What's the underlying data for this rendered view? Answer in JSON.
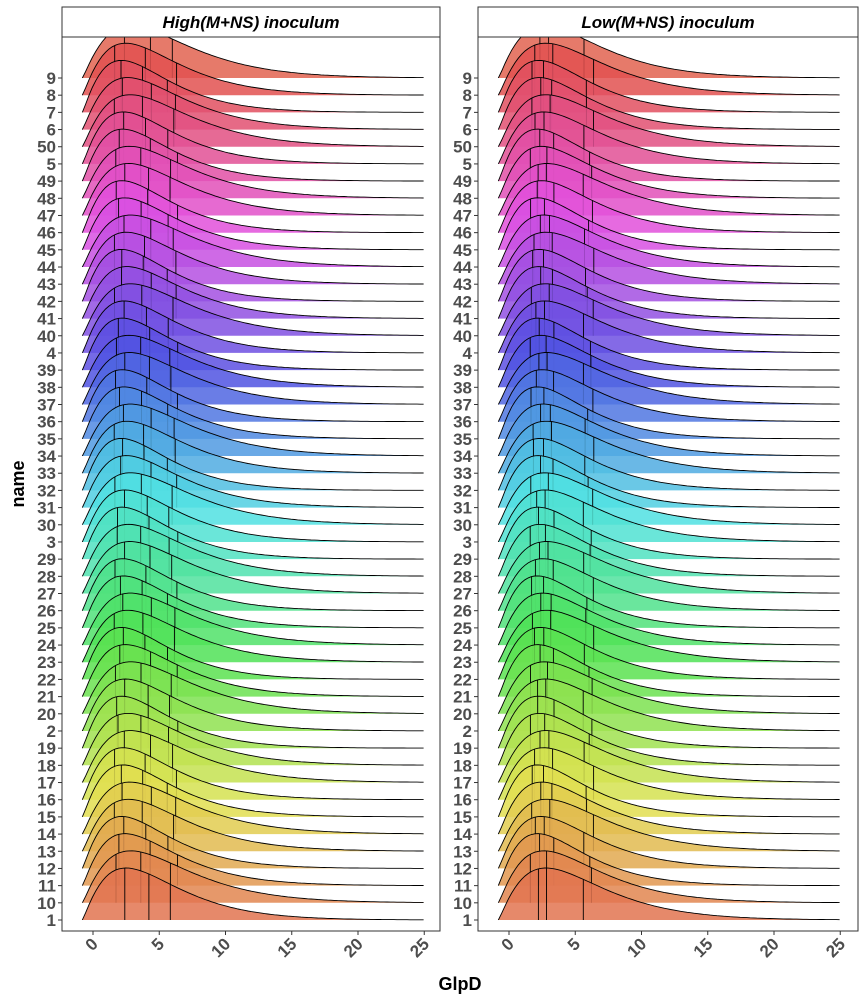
{
  "chart_data": {
    "type": "ridgeline",
    "xlabel": "GlpD",
    "ylabel": "name",
    "xlim": [
      -1,
      25
    ],
    "x_ticks": [
      0,
      5,
      10,
      15,
      20,
      25
    ],
    "y_categories": [
      "1",
      "10",
      "11",
      "12",
      "13",
      "14",
      "15",
      "16",
      "17",
      "18",
      "19",
      "2",
      "20",
      "21",
      "22",
      "23",
      "24",
      "25",
      "26",
      "27",
      "28",
      "29",
      "3",
      "30",
      "31",
      "32",
      "33",
      "34",
      "35",
      "36",
      "37",
      "38",
      "39",
      "4",
      "40",
      "41",
      "42",
      "43",
      "44",
      "45",
      "46",
      "47",
      "48",
      "49",
      "5",
      "50",
      "6",
      "7",
      "8",
      "9"
    ],
    "quantile_lines": true,
    "grid": false,
    "legend": "none",
    "panels": [
      {
        "title": "High(M+NS) inoculum",
        "mode": 2.5,
        "quantiles": [
          2,
          4,
          6
        ]
      },
      {
        "title": "Low(M+NS) inoculum",
        "mode": 2.5,
        "quantiles": [
          2,
          3,
          6
        ]
      }
    ]
  }
}
